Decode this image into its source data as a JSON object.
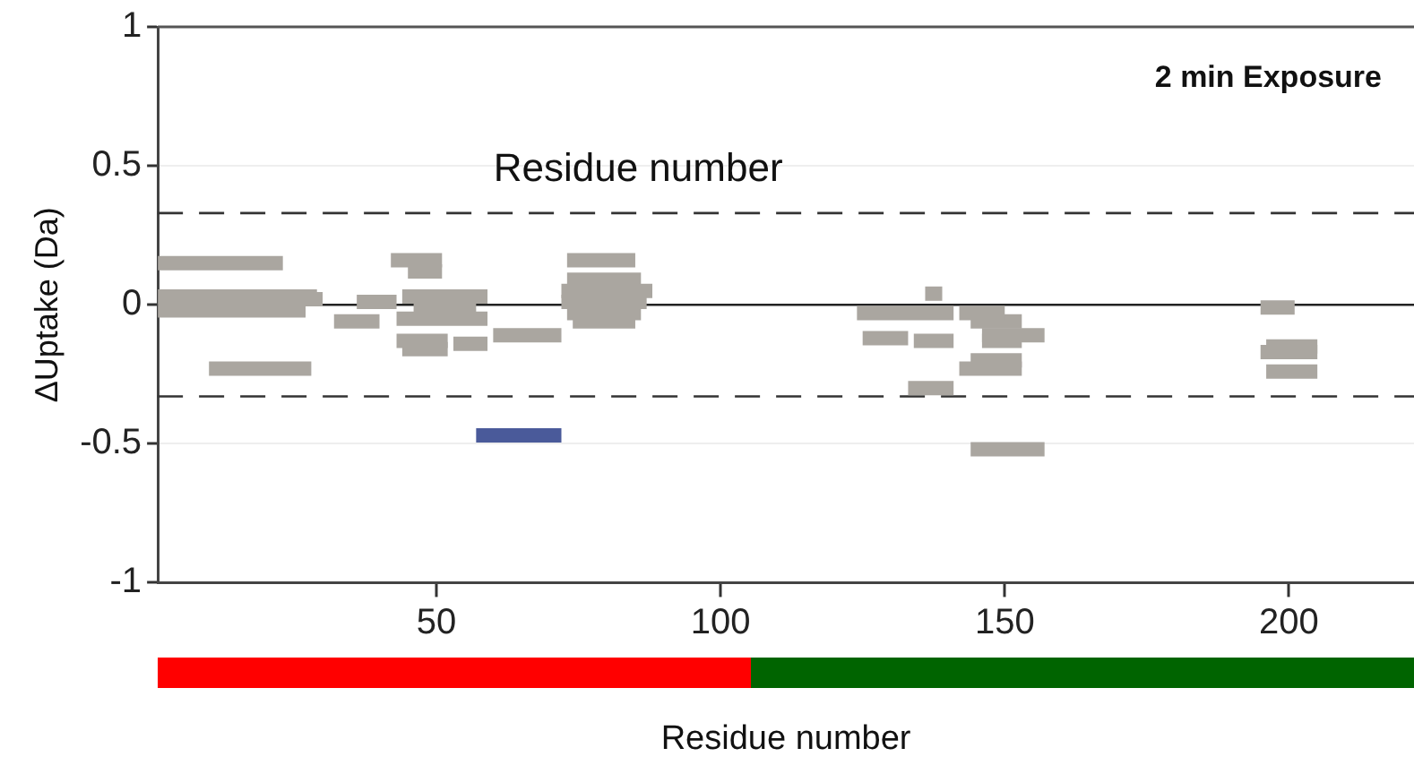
{
  "chart_data": {
    "type": "line",
    "xlabel": "Residue number",
    "ylabel": "ΔUptake (Da)",
    "annotations": [
      "2 min Exposure",
      "Residue number"
    ],
    "series": [
      {
        "color": "#aaa6a0",
        "x": [
          1,
          23
        ],
        "values": [
          0.15,
          0.15
        ]
      },
      {
        "color": "#aaa6a0",
        "x": [
          1,
          29
        ],
        "values": [
          0.03,
          0.03
        ]
      },
      {
        "color": "#aaa6a0",
        "x": [
          1,
          27
        ],
        "values": [
          -0.02,
          -0.02
        ]
      },
      {
        "color": "#aaa6a0",
        "x": [
          21,
          30
        ],
        "values": [
          0.02,
          0.02
        ]
      },
      {
        "color": "#aaa6a0",
        "x": [
          10,
          28
        ],
        "values": [
          -0.23,
          -0.23
        ]
      },
      {
        "color": "#aaa6a0",
        "x": [
          32,
          40
        ],
        "values": [
          -0.06,
          -0.06
        ]
      },
      {
        "color": "#aaa6a0",
        "x": [
          36,
          43
        ],
        "values": [
          0.01,
          0.01
        ]
      },
      {
        "color": "#aaa6a0",
        "x": [
          42,
          51
        ],
        "values": [
          0.16,
          0.16
        ]
      },
      {
        "color": "#aaa6a0",
        "x": [
          45,
          51
        ],
        "values": [
          0.12,
          0.12
        ]
      },
      {
        "color": "#aaa6a0",
        "x": [
          44,
          59
        ],
        "values": [
          0.03,
          0.03
        ]
      },
      {
        "color": "#aaa6a0",
        "x": [
          46,
          57
        ],
        "values": [
          -0.01,
          -0.01
        ]
      },
      {
        "color": "#aaa6a0",
        "x": [
          43,
          59
        ],
        "values": [
          -0.05,
          -0.05
        ]
      },
      {
        "color": "#aaa6a0",
        "x": [
          43,
          52
        ],
        "values": [
          -0.13,
          -0.13
        ]
      },
      {
        "color": "#aaa6a0",
        "x": [
          44,
          52
        ],
        "values": [
          -0.16,
          -0.16
        ]
      },
      {
        "color": "#aaa6a0",
        "x": [
          53,
          59
        ],
        "values": [
          -0.14,
          -0.14
        ]
      },
      {
        "color": "#aaa6a0",
        "x": [
          60,
          72
        ],
        "values": [
          -0.11,
          -0.11
        ]
      },
      {
        "color": "#4a5a9a",
        "x": [
          57,
          72
        ],
        "values": [
          -0.47,
          -0.47
        ]
      },
      {
        "color": "#aaa6a0",
        "x": [
          73,
          85
        ],
        "values": [
          0.16,
          0.16
        ]
      },
      {
        "color": "#aaa6a0",
        "x": [
          73,
          86
        ],
        "values": [
          0.09,
          0.09
        ]
      },
      {
        "color": "#aaa6a0",
        "x": [
          72,
          88
        ],
        "values": [
          0.05,
          0.05
        ]
      },
      {
        "color": "#aaa6a0",
        "x": [
          72,
          87
        ],
        "values": [
          0.01,
          0.01
        ]
      },
      {
        "color": "#aaa6a0",
        "x": [
          73,
          86
        ],
        "values": [
          -0.03,
          -0.03
        ]
      },
      {
        "color": "#aaa6a0",
        "x": [
          74,
          85
        ],
        "values": [
          -0.06,
          -0.06
        ]
      },
      {
        "color": "#aaa6a0",
        "x": [
          124,
          141
        ],
        "values": [
          -0.03,
          -0.03
        ]
      },
      {
        "color": "#aaa6a0",
        "x": [
          136,
          139
        ],
        "values": [
          0.04,
          0.04
        ]
      },
      {
        "color": "#aaa6a0",
        "x": [
          125,
          133
        ],
        "values": [
          -0.12,
          -0.12
        ]
      },
      {
        "color": "#aaa6a0",
        "x": [
          134,
          141
        ],
        "values": [
          -0.13,
          -0.13
        ]
      },
      {
        "color": "#aaa6a0",
        "x": [
          133,
          141
        ],
        "values": [
          -0.3,
          -0.3
        ]
      },
      {
        "color": "#aaa6a0",
        "x": [
          142,
          150
        ],
        "values": [
          -0.03,
          -0.03
        ]
      },
      {
        "color": "#aaa6a0",
        "x": [
          144,
          153
        ],
        "values": [
          -0.06,
          -0.06
        ]
      },
      {
        "color": "#aaa6a0",
        "x": [
          146,
          157
        ],
        "values": [
          -0.11,
          -0.11
        ]
      },
      {
        "color": "#aaa6a0",
        "x": [
          146,
          153
        ],
        "values": [
          -0.13,
          -0.13
        ]
      },
      {
        "color": "#aaa6a0",
        "x": [
          142,
          153
        ],
        "values": [
          -0.23,
          -0.23
        ]
      },
      {
        "color": "#aaa6a0",
        "x": [
          144,
          153
        ],
        "values": [
          -0.2,
          -0.2
        ]
      },
      {
        "color": "#aaa6a0",
        "x": [
          144,
          157
        ],
        "values": [
          -0.52,
          -0.52
        ]
      },
      {
        "color": "#aaa6a0",
        "x": [
          195,
          201
        ],
        "values": [
          -0.01,
          -0.01
        ]
      },
      {
        "color": "#aaa6a0",
        "x": [
          195,
          205
        ],
        "values": [
          -0.17,
          -0.17
        ]
      },
      {
        "color": "#aaa6a0",
        "x": [
          196,
          205
        ],
        "values": [
          -0.15,
          -0.15
        ]
      },
      {
        "color": "#aaa6a0",
        "x": [
          196,
          205
        ],
        "values": [
          -0.24,
          -0.24
        ]
      }
    ],
    "xlim": [
      1,
      222
    ],
    "xticks": [
      50,
      100,
      150,
      200
    ],
    "ylim": [
      -1,
      1
    ],
    "yticks": [
      1,
      0.5,
      0,
      -0.5,
      -1
    ],
    "grid": "y",
    "line_style": "solid",
    "marker": "none",
    "ref_lines": [
      {
        "axis": "y",
        "value": 0.33,
        "line_style": "dashed",
        "color": "#333333"
      },
      {
        "axis": "y",
        "value": 0,
        "line_style": "solid",
        "color": "#222222"
      },
      {
        "axis": "y",
        "value": -0.33,
        "line_style": "dashed",
        "color": "#333333"
      }
    ]
  }
}
